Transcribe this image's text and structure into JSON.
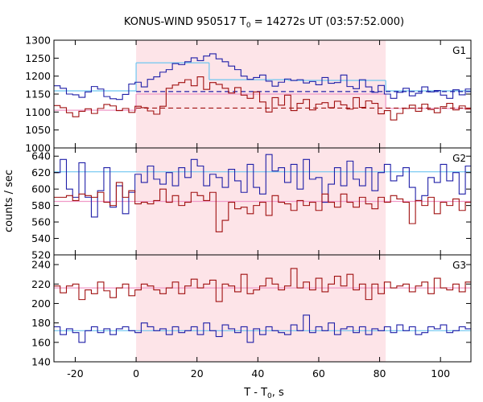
{
  "chart_data": {
    "type": "line",
    "style": "step",
    "title": {
      "main": "KONUS-WIND 950517 T",
      "sub": "0",
      "rest": " = 14272s UT (03:57:52.000)"
    },
    "xlabel": {
      "main": "T - T",
      "sub": "0",
      "rest": ", s"
    },
    "ylabel": "counts / sec",
    "xlim": [
      -27,
      110
    ],
    "x_ticks": [
      -20,
      0,
      20,
      40,
      60,
      80,
      100
    ],
    "x_tick_labels": [
      "-20",
      "0",
      "20",
      "40",
      "60",
      "80",
      "100"
    ],
    "highlight_interval": [
      0,
      82
    ],
    "colors": {
      "blue": "#1f1fa8",
      "red": "#a01010",
      "light_blue": "#6ec6f0",
      "pink": "#f09ac8",
      "shade": "#fde4e8"
    },
    "panels": [
      {
        "name": "G1",
        "ylim": [
          1000,
          1300
        ],
        "y_ticks": [
          1000,
          1050,
          1100,
          1150,
          1200,
          1250,
          1300
        ],
        "y_tick_labels": [
          "1000",
          "1050",
          "1100",
          "1150",
          "1200",
          "1250",
          "1300"
        ],
        "bin_start": -27,
        "bin_width": 2.048,
        "series": [
          {
            "color": "blue",
            "values": [
              1173,
              1166,
              1150,
              1148,
              1141,
              1156,
              1171,
              1164,
              1143,
              1137,
              1135,
              1149,
              1178,
              1183,
              1170,
              1191,
              1198,
              1211,
              1218,
              1235,
              1232,
              1240,
              1251,
              1243,
              1256,
              1262,
              1248,
              1240,
              1228,
              1218,
              1200,
              1191,
              1196,
              1203,
              1186,
              1172,
              1183,
              1192,
              1188,
              1190,
              1181,
              1185,
              1176,
              1196,
              1180,
              1182,
              1203,
              1171,
              1165,
              1190,
              1170,
              1155,
              1174,
              1150,
              1138,
              1155,
              1166,
              1145,
              1152,
              1170,
              1156,
              1160,
              1147,
              1138,
              1162,
              1148,
              1164
            ]
          },
          {
            "color": "red",
            "values": [
              1118,
              1112,
              1098,
              1087,
              1102,
              1109,
              1096,
              1110,
              1121,
              1117,
              1104,
              1110,
              1099,
              1116,
              1112,
              1103,
              1094,
              1116,
              1166,
              1175,
              1182,
              1190,
              1173,
              1198,
              1163,
              1182,
              1177,
              1166,
              1153,
              1168,
              1147,
              1138,
              1156,
              1128,
              1100,
              1140,
              1119,
              1147,
              1104,
              1124,
              1135,
              1106,
              1122,
              1126,
              1112,
              1130,
              1120,
              1108,
              1140,
              1113,
              1131,
              1124,
              1095,
              1104,
              1078,
              1096,
              1110,
              1119,
              1102,
              1122,
              1107,
              1098,
              1115,
              1124,
              1106,
              1117,
              1108
            ]
          }
        ],
        "fits": [
          {
            "color": "light_blue",
            "style": "solid",
            "segments": [
              [
                -27,
                0,
                1159
              ],
              [
                0,
                24,
                1237
              ],
              [
                24,
                50,
                1190
              ],
              [
                50,
                82,
                1188
              ],
              [
                82,
                110,
                1159
              ]
            ]
          },
          {
            "color": "blue",
            "style": "dashed",
            "segments": [
              [
                0,
                110,
                1157
              ]
            ]
          },
          {
            "color": "pink",
            "style": "solid",
            "segments": [
              [
                -27,
                0,
                1105
              ],
              [
                0,
                82,
                1150
              ],
              [
                82,
                110,
                1110
              ]
            ]
          },
          {
            "color": "red",
            "style": "dashed",
            "segments": [
              [
                0,
                110,
                1111
              ]
            ]
          }
        ]
      },
      {
        "name": "G2",
        "ylim": [
          520,
          650
        ],
        "y_ticks": [
          520,
          540,
          560,
          580,
          600,
          620,
          640
        ],
        "y_tick_labels": [
          "520",
          "540",
          "560",
          "580",
          "600",
          "620",
          "640"
        ],
        "bin_start": -27,
        "bin_width": 2.048,
        "series": [
          {
            "color": "blue",
            "values": [
              620,
              636,
              600,
              590,
              632,
              590,
              566,
              598,
              626,
              578,
              604,
              570,
              596,
              618,
              608,
              628,
              612,
              606,
              620,
              604,
              626,
              614,
              636,
              628,
              604,
              618,
              614,
              602,
              624,
              610,
              596,
              630,
              602,
              594,
              642,
              622,
              626,
              608,
              630,
              600,
              636,
              612,
              614,
              584,
              606,
              626,
              604,
              634,
              612,
              604,
              626,
              598,
              620,
              630,
              610,
              616,
              626,
              602,
              586,
              592,
              614,
              608,
              630,
              610,
              620,
              594,
              628
            ]
          },
          {
            "color": "red",
            "values": [
              590,
              590,
              592,
              586,
              594,
              592,
              590,
              596,
              584,
              580,
              608,
              590,
              598,
              582,
              584,
              582,
              586,
              600,
              584,
              592,
              580,
              584,
              596,
              592,
              586,
              596,
              548,
              562,
              584,
              576,
              578,
              570,
              580,
              584,
              568,
              592,
              584,
              582,
              574,
              586,
              580,
              584,
              574,
              594,
              584,
              578,
              594,
              584,
              578,
              590,
              582,
              576,
              590,
              584,
              592,
              588,
              584,
              558,
              586,
              580,
              590,
              570,
              584,
              580,
              588,
              574,
              584
            ]
          }
        ],
        "fits": [
          {
            "color": "light_blue",
            "style": "solid",
            "segments": [
              [
                -27,
                110,
                621
              ]
            ]
          },
          {
            "color": "pink",
            "style": "solid",
            "segments": [
              [
                -27,
                110,
                585
              ]
            ]
          }
        ]
      },
      {
        "name": "G3",
        "ylim": [
          140,
          250
        ],
        "y_ticks": [
          140,
          160,
          180,
          200,
          220,
          240
        ],
        "y_tick_labels": [
          "140",
          "160",
          "180",
          "200",
          "220",
          "240"
        ],
        "bin_start": -27,
        "bin_width": 2.048,
        "series": [
          {
            "color": "red",
            "values": [
              218,
              211,
              218,
              220,
              204,
              214,
              210,
              222,
              213,
              206,
              216,
              220,
              208,
              214,
              220,
              218,
              214,
              210,
              216,
              222,
              210,
              218,
              225,
              216,
              220,
              224,
              202,
              220,
              218,
              212,
              230,
              210,
              214,
              218,
              226,
              220,
              214,
              218,
              236,
              216,
              222,
              214,
              226,
              212,
              220,
              228,
              218,
              230,
              214,
              220,
              204,
              220,
              210,
              222,
              216,
              218,
              220,
              212,
              218,
              222,
              210,
              226,
              216,
              214,
              220,
              212,
              222
            ]
          },
          {
            "color": "blue",
            "values": [
              176,
              168,
              174,
              170,
              160,
              172,
              176,
              170,
              174,
              168,
              174,
              176,
              172,
              170,
              180,
              176,
              172,
              174,
              168,
              176,
              170,
              172,
              176,
              168,
              180,
              172,
              166,
              178,
              174,
              170,
              176,
              160,
              174,
              168,
              176,
              172,
              170,
              168,
              178,
              172,
              188,
              170,
              176,
              172,
              180,
              168,
              174,
              176,
              170,
              176,
              168,
              174,
              172,
              176,
              170,
              178,
              172,
              176,
              168,
              170,
              176,
              174,
              178,
              170,
              172,
              176,
              174
            ]
          }
        ],
        "fits": [
          {
            "color": "pink",
            "style": "solid",
            "segments": [
              [
                -27,
                110,
                216
              ]
            ]
          },
          {
            "color": "light_blue",
            "style": "solid",
            "segments": [
              [
                -27,
                110,
                172
              ]
            ]
          }
        ]
      }
    ]
  }
}
